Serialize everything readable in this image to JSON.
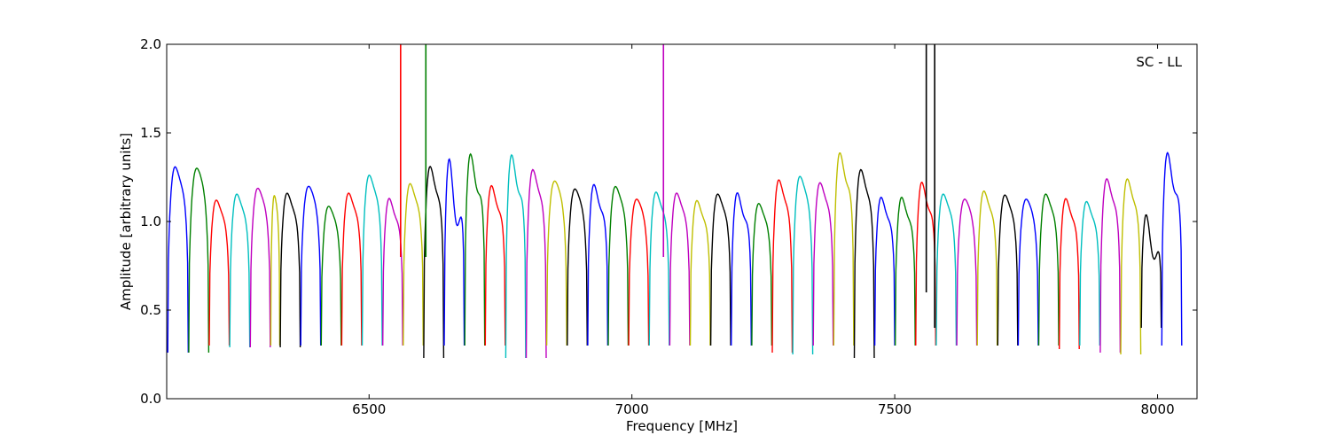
{
  "chart_data": {
    "type": "line",
    "title": "",
    "xlabel": "Frequency [MHz]",
    "ylabel": "Amplitude [arbitrary units]",
    "annotation": "SC - LL",
    "xlim": [
      6115,
      8075
    ],
    "ylim": [
      0.0,
      2.0
    ],
    "x_ticks": [
      6500,
      7000,
      7500,
      8000
    ],
    "y_ticks": [
      0.0,
      0.5,
      1.0,
      1.5,
      2.0
    ],
    "x_tick_labels": [
      "6500",
      "7000",
      "7500",
      "8000"
    ],
    "y_tick_labels": [
      "0.0",
      "0.5",
      "1.0",
      "1.5",
      "2.0"
    ],
    "grid": false,
    "legend": "none",
    "colors": [
      "#0000ff",
      "#008000",
      "#ff0000",
      "#00bfbf",
      "#bf00bf",
      "#bfbf00",
      "#000000"
    ],
    "reference_color": "#bbbbbb",
    "channels_per_window": 32,
    "windows": [
      {
        "x0": 6117,
        "x1": 6156,
        "peak": 1.43,
        "dip": 1.25,
        "min": 0.26,
        "color": "#0000ff"
      },
      {
        "x0": 6157,
        "x1": 6195,
        "peak": 1.39,
        "dip": 1.27,
        "min": 0.26,
        "color": "#008000"
      },
      {
        "x0": 6196,
        "x1": 6234,
        "peak": 1.22,
        "dip": 1.07,
        "min": 0.3,
        "color": "#ff0000"
      },
      {
        "x0": 6235,
        "x1": 6273,
        "peak": 1.26,
        "dip": 1.1,
        "min": 0.29,
        "color": "#00bfbf"
      },
      {
        "x0": 6274,
        "x1": 6312,
        "peak": 1.28,
        "dip": 1.15,
        "min": 0.29,
        "color": "#bf00bf"
      },
      {
        "x0": 6313,
        "x1": 6330,
        "peak": 1.22,
        "dip": 1.12,
        "min": 0.3,
        "color": "#bfbf00"
      },
      {
        "x0": 6331,
        "x1": 6369,
        "peak": 1.27,
        "dip": 1.1,
        "min": 0.29,
        "color": "#000000"
      },
      {
        "x0": 6370,
        "x1": 6408,
        "peak": 1.28,
        "dip": 1.17,
        "min": 0.3,
        "color": "#0000ff"
      },
      {
        "x0": 6409,
        "x1": 6447,
        "peak": 1.17,
        "dip": 1.05,
        "min": 0.3,
        "color": "#008000"
      },
      {
        "x0": 6448,
        "x1": 6486,
        "peak": 1.27,
        "dip": 1.1,
        "min": 0.3,
        "color": "#ff0000"
      },
      {
        "x0": 6487,
        "x1": 6525,
        "peak": 1.38,
        "dip": 1.2,
        "min": 0.3,
        "color": "#00bfbf"
      },
      {
        "x0": 6526,
        "x1": 6564,
        "peak": 1.25,
        "dip": 1.05,
        "min": 0.3,
        "color": "#bf00bf"
      },
      {
        "x0": 6565,
        "x1": 6603,
        "peak": 1.33,
        "dip": 1.15,
        "min": 0.3,
        "color": "#bfbf00"
      },
      {
        "x0": 6604,
        "x1": 6642,
        "peak": 1.47,
        "dip": 1.2,
        "min": 0.23,
        "color": "#000000"
      },
      {
        "x0": 6643,
        "x1": 6681,
        "peak": 1.58,
        "dip": 1.0,
        "min": 0.3,
        "color": "#0000ff"
      },
      {
        "x0": 6682,
        "x1": 6720,
        "peak": 1.57,
        "dip": 1.2,
        "min": 0.3,
        "color": "#008000"
      },
      {
        "x0": 6721,
        "x1": 6759,
        "peak": 1.34,
        "dip": 1.1,
        "min": 0.3,
        "color": "#ff0000"
      },
      {
        "x0": 6760,
        "x1": 6798,
        "peak": 1.57,
        "dip": 1.2,
        "min": 0.23,
        "color": "#00bfbf"
      },
      {
        "x0": 6799,
        "x1": 6837,
        "peak": 1.44,
        "dip": 1.2,
        "min": 0.23,
        "color": "#bf00bf"
      },
      {
        "x0": 6838,
        "x1": 6876,
        "peak": 1.31,
        "dip": 1.2,
        "min": 0.3,
        "color": "#bfbf00"
      },
      {
        "x0": 6877,
        "x1": 6915,
        "peak": 1.27,
        "dip": 1.15,
        "min": 0.3,
        "color": "#000000"
      },
      {
        "x0": 6916,
        "x1": 6954,
        "peak": 1.35,
        "dip": 1.1,
        "min": 0.3,
        "color": "#0000ff"
      },
      {
        "x0": 6955,
        "x1": 6993,
        "peak": 1.3,
        "dip": 1.15,
        "min": 0.3,
        "color": "#008000"
      },
      {
        "x0": 6994,
        "x1": 7032,
        "peak": 1.2,
        "dip": 1.1,
        "min": 0.3,
        "color": "#ff0000"
      },
      {
        "x0": 7033,
        "x1": 7071,
        "peak": 1.28,
        "dip": 1.1,
        "min": 0.3,
        "color": "#00bfbf"
      },
      {
        "x0": 7072,
        "x1": 7110,
        "peak": 1.27,
        "dip": 1.1,
        "min": 0.3,
        "color": "#bf00bf"
      },
      {
        "x0": 7111,
        "x1": 7149,
        "peak": 1.23,
        "dip": 1.05,
        "min": 0.3,
        "color": "#bfbf00"
      },
      {
        "x0": 7150,
        "x1": 7188,
        "peak": 1.26,
        "dip": 1.1,
        "min": 0.3,
        "color": "#000000"
      },
      {
        "x0": 7189,
        "x1": 7227,
        "peak": 1.3,
        "dip": 1.05,
        "min": 0.3,
        "color": "#0000ff"
      },
      {
        "x0": 7228,
        "x1": 7266,
        "peak": 1.2,
        "dip": 1.05,
        "min": 0.3,
        "color": "#008000"
      },
      {
        "x0": 7267,
        "x1": 7305,
        "peak": 1.37,
        "dip": 1.15,
        "min": 0.26,
        "color": "#ff0000"
      },
      {
        "x0": 7306,
        "x1": 7344,
        "peak": 1.37,
        "dip": 1.2,
        "min": 0.25,
        "color": "#00bfbf"
      },
      {
        "x0": 7345,
        "x1": 7383,
        "peak": 1.34,
        "dip": 1.15,
        "min": 0.3,
        "color": "#bf00bf"
      },
      {
        "x0": 7384,
        "x1": 7422,
        "peak": 1.56,
        "dip": 1.25,
        "min": 0.3,
        "color": "#bfbf00"
      },
      {
        "x0": 7423,
        "x1": 7461,
        "peak": 1.44,
        "dip": 1.2,
        "min": 0.23,
        "color": "#000000"
      },
      {
        "x0": 7462,
        "x1": 7500,
        "peak": 1.26,
        "dip": 1.05,
        "min": 0.3,
        "color": "#0000ff"
      },
      {
        "x0": 7501,
        "x1": 7539,
        "peak": 1.26,
        "dip": 1.05,
        "min": 0.3,
        "color": "#008000"
      },
      {
        "x0": 7540,
        "x1": 7578,
        "peak": 1.37,
        "dip": 1.1,
        "min": 0.3,
        "color": "#ff0000"
      },
      {
        "x0": 7579,
        "x1": 7617,
        "peak": 1.26,
        "dip": 1.1,
        "min": 0.3,
        "color": "#00bfbf"
      },
      {
        "x0": 7618,
        "x1": 7656,
        "peak": 1.2,
        "dip": 1.1,
        "min": 0.3,
        "color": "#bf00bf"
      },
      {
        "x0": 7657,
        "x1": 7695,
        "peak": 1.29,
        "dip": 1.1,
        "min": 0.3,
        "color": "#bfbf00"
      },
      {
        "x0": 7696,
        "x1": 7734,
        "peak": 1.25,
        "dip": 1.1,
        "min": 0.3,
        "color": "#000000"
      },
      {
        "x0": 7735,
        "x1": 7773,
        "peak": 1.2,
        "dip": 1.1,
        "min": 0.3,
        "color": "#0000ff"
      },
      {
        "x0": 7774,
        "x1": 7812,
        "peak": 1.26,
        "dip": 1.1,
        "min": 0.3,
        "color": "#008000"
      },
      {
        "x0": 7813,
        "x1": 7851,
        "peak": 1.25,
        "dip": 1.05,
        "min": 0.28,
        "color": "#ff0000"
      },
      {
        "x0": 7852,
        "x1": 7890,
        "peak": 1.22,
        "dip": 1.05,
        "min": 0.3,
        "color": "#00bfbf"
      },
      {
        "x0": 7891,
        "x1": 7929,
        "peak": 1.38,
        "dip": 1.15,
        "min": 0.26,
        "color": "#bf00bf"
      },
      {
        "x0": 7930,
        "x1": 7968,
        "peak": 1.38,
        "dip": 1.15,
        "min": 0.25,
        "color": "#bfbf00"
      },
      {
        "x0": 7969,
        "x1": 8007,
        "peak": 1.18,
        "dip": 0.8,
        "min": 0.4,
        "color": "#000000"
      },
      {
        "x0": 8008,
        "x1": 8046,
        "peak": 1.58,
        "dip": 1.2,
        "min": 0.3,
        "color": "#0000ff"
      }
    ],
    "spikes": [
      {
        "x": 6560,
        "y_low": 0.8,
        "y_high": 2.0,
        "color": "#ff0000"
      },
      {
        "x": 6608,
        "y_low": 0.8,
        "y_high": 2.0,
        "color": "#008000"
      },
      {
        "x": 7060,
        "y_low": 0.8,
        "y_high": 2.0,
        "color": "#bf00bf"
      },
      {
        "x": 7560,
        "y_low": 0.6,
        "y_high": 2.0,
        "color": "#000000"
      },
      {
        "x": 7576,
        "y_low": 0.4,
        "y_high": 2.0,
        "color": "#000000"
      }
    ]
  }
}
